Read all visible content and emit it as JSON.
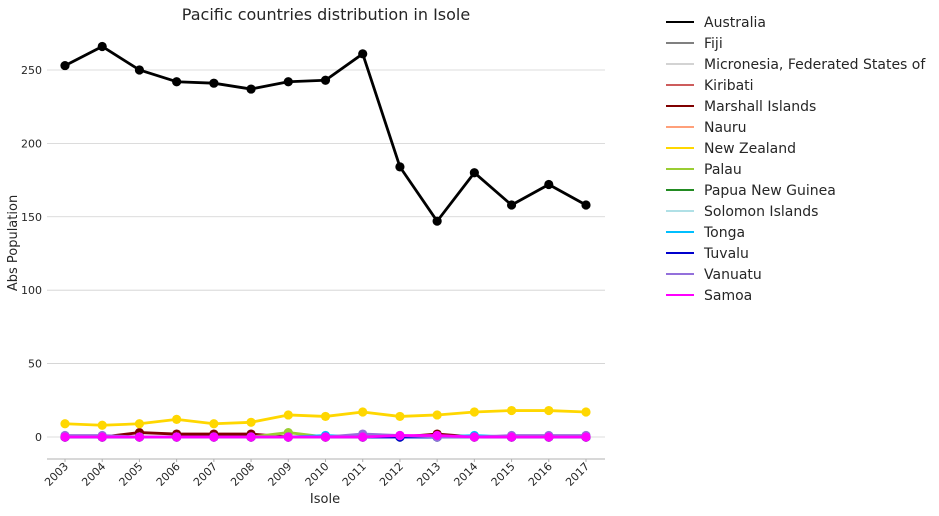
{
  "chart_data": {
    "type": "line",
    "title": "Pacific countries distribution in Isole",
    "xlabel": "Isole",
    "ylabel": "Abs Population",
    "x": [
      "2003",
      "2004",
      "2005",
      "2006",
      "2007",
      "2008",
      "2009",
      "2010",
      "2011",
      "2012",
      "2013",
      "2014",
      "2015",
      "2016",
      "2017"
    ],
    "ylim": [
      -15,
      282
    ],
    "yticks": [
      0,
      50,
      100,
      150,
      200,
      250
    ],
    "grid": "horizontal",
    "legend_position": "outside right",
    "series": [
      {
        "name": "Australia",
        "color": "#000000",
        "values": [
          253,
          266,
          250,
          242,
          241,
          237,
          242,
          243,
          261,
          184,
          147,
          180,
          158,
          172,
          158
        ]
      },
      {
        "name": "Fiji",
        "color": "#808080",
        "values": [
          0,
          0,
          0,
          0,
          0,
          0,
          0,
          0,
          0,
          0,
          0,
          0,
          0,
          0,
          0
        ]
      },
      {
        "name": "Micronesia, Federated States of",
        "color": "#d3d3d3",
        "values": [
          0,
          0,
          0,
          0,
          0,
          0,
          0,
          0,
          0,
          0,
          0,
          0,
          0,
          0,
          0
        ]
      },
      {
        "name": "Kiribati",
        "color": "#cd5c5c",
        "values": [
          0,
          0,
          0,
          0,
          0,
          0,
          0,
          0,
          0,
          0,
          0,
          0,
          0,
          0,
          0
        ]
      },
      {
        "name": "Marshall Islands",
        "color": "#800000",
        "values": [
          0,
          0,
          3,
          2,
          2,
          2,
          0,
          0,
          0,
          0,
          2,
          0,
          0,
          0,
          0
        ]
      },
      {
        "name": "Nauru",
        "color": "#ffa07a",
        "values": [
          0,
          0,
          0,
          0,
          0,
          0,
          0,
          0,
          0,
          0,
          0,
          0,
          0,
          0,
          0
        ]
      },
      {
        "name": "New Zealand",
        "color": "#ffd700",
        "values": [
          9,
          8,
          9,
          12,
          9,
          10,
          15,
          14,
          17,
          14,
          15,
          17,
          18,
          18,
          17
        ]
      },
      {
        "name": "Palau",
        "color": "#9acd32",
        "values": [
          0,
          0,
          0,
          0,
          0,
          0,
          3,
          0,
          0,
          0,
          0,
          0,
          0,
          0,
          0
        ]
      },
      {
        "name": "Papua New Guinea",
        "color": "#228b22",
        "values": [
          0,
          0,
          0,
          0,
          0,
          0,
          0,
          0,
          0,
          0,
          0,
          0,
          0,
          0,
          0
        ]
      },
      {
        "name": "Solomon Islands",
        "color": "#b0e0e6",
        "values": [
          0,
          0,
          0,
          0,
          0,
          0,
          0,
          0,
          0,
          0,
          0,
          0,
          0,
          0,
          0
        ]
      },
      {
        "name": "Tonga",
        "color": "#00bfff",
        "values": [
          0,
          0,
          0,
          0,
          0,
          0,
          0,
          1,
          0,
          0,
          0,
          1,
          0,
          0,
          0
        ]
      },
      {
        "name": "Tuvalu",
        "color": "#0000cd",
        "values": [
          0,
          0,
          0,
          0,
          0,
          0,
          0,
          0,
          0,
          0,
          0,
          0,
          0,
          0,
          0
        ]
      },
      {
        "name": "Vanuatu",
        "color": "#9370db",
        "values": [
          1,
          1,
          0,
          0,
          0,
          0,
          0,
          0,
          2,
          1,
          0,
          0,
          1,
          1,
          1
        ]
      },
      {
        "name": "Samoa",
        "color": "#ff00ff",
        "values": [
          0,
          0,
          0,
          0,
          0,
          0,
          0,
          0,
          0,
          1,
          1,
          0,
          0,
          0,
          0
        ]
      }
    ]
  }
}
